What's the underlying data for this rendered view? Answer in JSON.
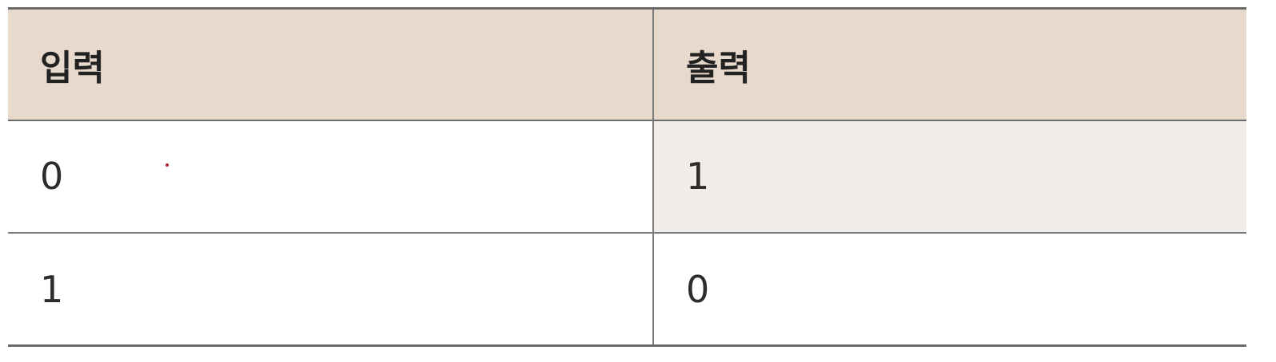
{
  "table": {
    "headers": [
      "입력",
      "출력"
    ],
    "rows": [
      [
        "0",
        "1"
      ],
      [
        "1",
        "0"
      ]
    ]
  },
  "colors": {
    "header_background": "#e8d9cd",
    "shaded_cell_background": "#f2ede8",
    "rule_color": "#6a6a6a"
  }
}
